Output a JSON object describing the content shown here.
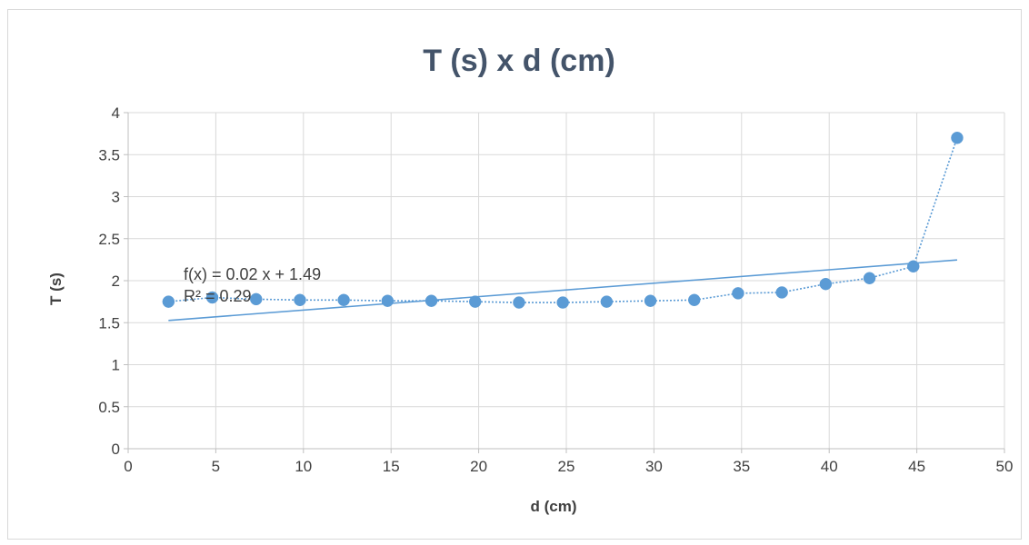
{
  "chart_data": {
    "type": "scatter",
    "title": "T (s) x d (cm)",
    "xlabel": "d (cm)",
    "ylabel": "T (s)",
    "xlim": [
      0,
      50
    ],
    "ylim": [
      0,
      4
    ],
    "xticks": [
      0,
      5,
      10,
      15,
      20,
      25,
      30,
      35,
      40,
      45,
      50
    ],
    "yticks": [
      0,
      0.5,
      1,
      1.5,
      2,
      2.5,
      3,
      3.5,
      4
    ],
    "ytick_labels": [
      "0",
      "0.5",
      "1",
      "1.5",
      "2",
      "2.5",
      "3",
      "3.5",
      "4"
    ],
    "grid": true,
    "legend": "none",
    "series": [
      {
        "x": [
          2.3,
          4.8,
          7.3,
          9.8,
          12.3,
          14.8,
          17.3,
          19.8,
          22.3,
          24.8,
          27.3,
          29.8,
          32.3,
          34.8,
          37.3,
          39.8,
          42.3,
          44.8,
          47.3
        ],
        "y": [
          1.75,
          1.8,
          1.78,
          1.77,
          1.77,
          1.76,
          1.76,
          1.75,
          1.74,
          1.74,
          1.75,
          1.76,
          1.77,
          1.85,
          1.86,
          1.96,
          2.03,
          2.17,
          3.7
        ],
        "color": "#5b9bd5",
        "marker": "circle",
        "connector": "dotted"
      }
    ],
    "trendline": {
      "type": "linear",
      "slope": 0.016,
      "intercept": 1.49,
      "x_start": 2.3,
      "x_end": 47.3,
      "color": "#5b9bd5",
      "equation_label": "f(x) = 0.02 x + 1.49",
      "r2_label": "R² = 0.29"
    }
  }
}
